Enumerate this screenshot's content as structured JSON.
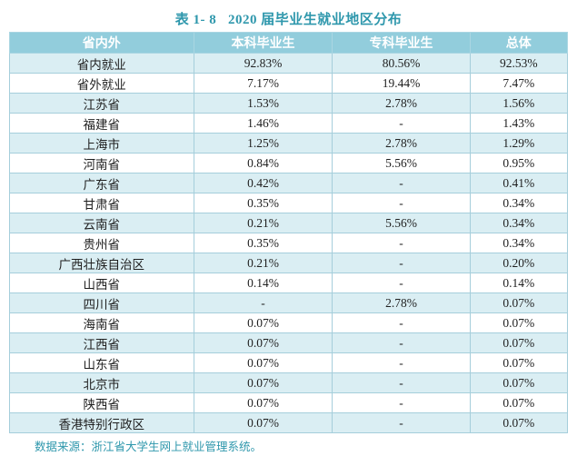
{
  "title": "表 1- 8   2020 届毕业生就业地区分布",
  "table": {
    "headers": [
      "省内外",
      "本科毕业生",
      "专科毕业生",
      "总体"
    ],
    "rows": [
      {
        "region": "省内就业",
        "values": [
          "92.83%",
          "80.56%",
          "92.53%"
        ]
      },
      {
        "region": "省外就业",
        "values": [
          "7.17%",
          "19.44%",
          "7.47%"
        ]
      },
      {
        "region": "江苏省",
        "values": [
          "1.53%",
          "2.78%",
          "1.56%"
        ]
      },
      {
        "region": "福建省",
        "values": [
          "1.46%",
          "-",
          "1.43%"
        ]
      },
      {
        "region": "上海市",
        "values": [
          "1.25%",
          "2.78%",
          "1.29%"
        ]
      },
      {
        "region": "河南省",
        "values": [
          "0.84%",
          "5.56%",
          "0.95%"
        ]
      },
      {
        "region": "广东省",
        "values": [
          "0.42%",
          "-",
          "0.41%"
        ]
      },
      {
        "region": "甘肃省",
        "values": [
          "0.35%",
          "-",
          "0.34%"
        ]
      },
      {
        "region": "云南省",
        "values": [
          "0.21%",
          "5.56%",
          "0.34%"
        ]
      },
      {
        "region": "贵州省",
        "values": [
          "0.35%",
          "-",
          "0.34%"
        ]
      },
      {
        "region": "广西壮族自治区",
        "values": [
          "0.21%",
          "-",
          "0.20%"
        ]
      },
      {
        "region": "山西省",
        "values": [
          "0.14%",
          "-",
          "0.14%"
        ]
      },
      {
        "region": "四川省",
        "values": [
          "-",
          "2.78%",
          "0.07%"
        ]
      },
      {
        "region": "海南省",
        "values": [
          "0.07%",
          "-",
          "0.07%"
        ]
      },
      {
        "region": "江西省",
        "values": [
          "0.07%",
          "-",
          "0.07%"
        ]
      },
      {
        "region": "山东省",
        "values": [
          "0.07%",
          "-",
          "0.07%"
        ]
      },
      {
        "region": "北京市",
        "values": [
          "0.07%",
          "-",
          "0.07%"
        ]
      },
      {
        "region": "陕西省",
        "values": [
          "0.07%",
          "-",
          "0.07%"
        ]
      },
      {
        "region": "香港特别行政区",
        "values": [
          "0.07%",
          "-",
          "0.07%"
        ]
      }
    ]
  },
  "source_note": "数据来源：浙江省大学生网上就业管理系统。",
  "colors": {
    "header_bg": "#92CDDC",
    "header_border": "#AAD6E2",
    "row_alt_bg": "#DAEEF3",
    "row_bg": "#FFFFFF",
    "grid_border": "#A5CEDB",
    "accent_text": "#2E97AC"
  }
}
